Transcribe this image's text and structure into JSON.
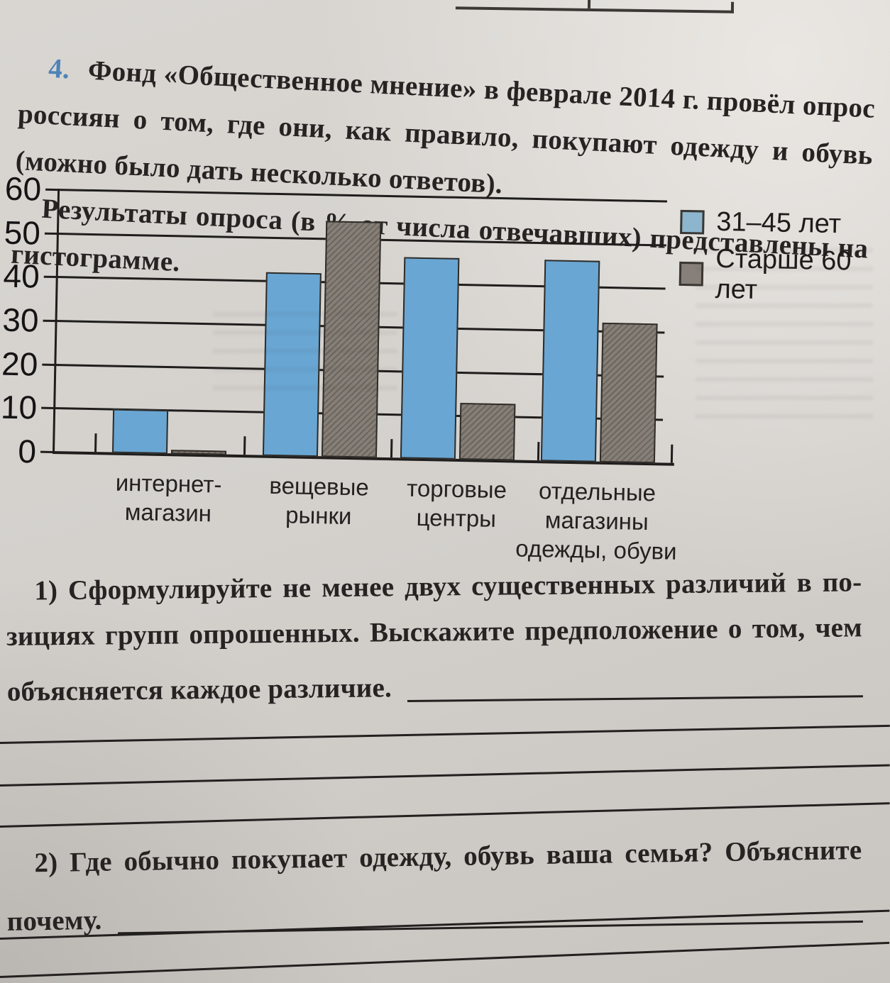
{
  "task": {
    "number": "4.",
    "lines": [
      "Фонд «Общественное мнение» в феврале 2014 г. провёл опрос",
      "россиян о том, где они, как правило, покупают одежду и обувь",
      "(можно было дать несколько ответов).",
      "Результаты опроса (в % от числа отвечавших) представлены на",
      "гистограмме."
    ]
  },
  "chart_data": {
    "type": "bar",
    "title": "",
    "xlabel": "",
    "ylabel": "",
    "categories": [
      "интернет-магазин",
      "вещевые рынки",
      "торговые центры",
      "отдельные магазины одежды, обуви"
    ],
    "category_label_lines": [
      [
        "интернет-",
        "магазин"
      ],
      [
        "вещевые",
        "рынки"
      ],
      [
        "торговые",
        "центры"
      ],
      [
        "отдельные",
        "магазины",
        "одежды, обуви"
      ]
    ],
    "series": [
      {
        "name": "31–45 лет",
        "values": [
          10,
          42,
          46,
          46
        ],
        "color": "#69a6d3",
        "swatch_color": "#8db6ce"
      },
      {
        "name": "Старше 60 лет",
        "values": [
          1,
          54,
          13,
          32
        ],
        "color": "#867f77",
        "swatch_color": "#87807a"
      }
    ],
    "unit": "% от числа отвечавших",
    "ylim": [
      0,
      60
    ],
    "yticks": [
      0,
      10,
      20,
      30,
      40,
      50,
      60
    ],
    "grid": true,
    "legend_position": "top-right"
  },
  "questions": {
    "q1": {
      "lines": [
        "1) Сформулируйте не менее двух существенных различий в по-",
        "зициях групп опрошенных. Выскажите предположение о том, чем"
      ],
      "last_line": "объясняется каждое различие."
    },
    "q2": {
      "line": "2) Где обычно покупает одежду, обувь ваша семья? Объясните",
      "last_line": "почему."
    }
  }
}
